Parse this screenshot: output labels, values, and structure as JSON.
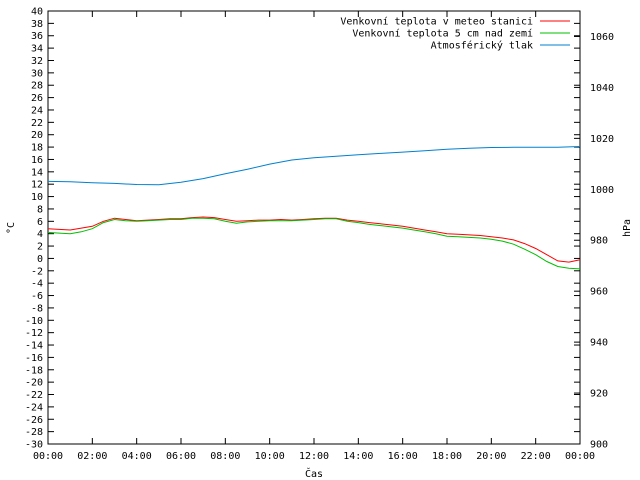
{
  "chart_data": {
    "type": "line",
    "title": "",
    "xlabel": "Čas",
    "ylabel": "°C",
    "y2label": "hPa",
    "x_ticks": [
      "00:00",
      "02:00",
      "04:00",
      "06:00",
      "08:00",
      "10:00",
      "12:00",
      "14:00",
      "16:00",
      "18:00",
      "20:00",
      "22:00",
      "00:00"
    ],
    "xlim": [
      0,
      24
    ],
    "ylim": [
      -30,
      40
    ],
    "y2lim": [
      900,
      1070
    ],
    "y_ticks": [
      40,
      38,
      36,
      34,
      32,
      30,
      28,
      26,
      24,
      22,
      20,
      18,
      16,
      14,
      12,
      10,
      8,
      6,
      4,
      2,
      0,
      -2,
      -4,
      -6,
      -8,
      -10,
      -12,
      -14,
      -16,
      -18,
      -20,
      -22,
      -24,
      -26,
      -28,
      -30
    ],
    "y2_ticks": [
      1060,
      1040,
      1020,
      1000,
      980,
      960,
      940,
      920,
      900
    ],
    "grid": false,
    "legend_position": "top-right",
    "series": [
      {
        "name": "Venkovní teplota v meteo stanici",
        "color": "#ff0000",
        "axis": "y",
        "x": [
          0,
          0.5,
          1,
          1.5,
          2,
          2.5,
          3,
          3.5,
          4,
          4.5,
          5,
          5.5,
          6,
          6.5,
          7,
          7.5,
          8,
          8.5,
          9,
          9.5,
          10,
          10.5,
          11,
          11.5,
          12,
          12.5,
          13,
          13.5,
          14,
          14.5,
          15,
          15.5,
          16,
          16.5,
          17,
          17.5,
          18,
          18.5,
          19,
          19.5,
          20,
          20.5,
          21,
          21.5,
          22,
          22.5,
          23,
          23.5,
          24
        ],
        "values": [
          4.8,
          4.7,
          4.6,
          4.9,
          5.2,
          6.0,
          6.5,
          6.3,
          6.1,
          6.2,
          6.3,
          6.4,
          6.4,
          6.6,
          6.7,
          6.6,
          6.3,
          6.0,
          6.1,
          6.2,
          6.2,
          6.3,
          6.2,
          6.3,
          6.4,
          6.5,
          6.5,
          6.2,
          6.0,
          5.8,
          5.6,
          5.4,
          5.2,
          4.9,
          4.6,
          4.3,
          4.0,
          3.9,
          3.8,
          3.7,
          3.5,
          3.3,
          3.0,
          2.4,
          1.6,
          0.6,
          -0.4,
          -0.6,
          -0.2
        ]
      },
      {
        "name": "Venkovní teplota 5 cm nad zemí",
        "color": "#00c000",
        "axis": "y",
        "x": [
          0,
          0.5,
          1,
          1.5,
          2,
          2.5,
          3,
          3.5,
          4,
          4.5,
          5,
          5.5,
          6,
          6.5,
          7,
          7.5,
          8,
          8.5,
          9,
          9.5,
          10,
          10.5,
          11,
          11.5,
          12,
          12.5,
          13,
          13.5,
          14,
          14.5,
          15,
          15.5,
          16,
          16.5,
          17,
          17.5,
          18,
          18.5,
          19,
          19.5,
          20,
          20.5,
          21,
          21.5,
          22,
          22.5,
          23,
          23.5,
          24
        ],
        "values": [
          4.2,
          4.1,
          4.0,
          4.3,
          4.8,
          5.8,
          6.3,
          6.1,
          6.0,
          6.1,
          6.2,
          6.3,
          6.3,
          6.5,
          6.5,
          6.4,
          6.0,
          5.7,
          5.9,
          6.0,
          6.1,
          6.1,
          6.1,
          6.2,
          6.3,
          6.4,
          6.4,
          6.0,
          5.8,
          5.5,
          5.3,
          5.1,
          4.9,
          4.6,
          4.3,
          4.0,
          3.6,
          3.5,
          3.4,
          3.3,
          3.1,
          2.8,
          2.3,
          1.5,
          0.6,
          -0.5,
          -1.3,
          -1.6,
          -1.7
        ]
      },
      {
        "name": "Atmosférický tlak",
        "color": "#0080d0",
        "axis": "y2",
        "x": [
          0,
          1,
          2,
          3,
          4,
          5,
          6,
          7,
          8,
          9,
          10,
          11,
          12,
          13,
          14,
          15,
          16,
          17,
          18,
          19,
          20,
          21,
          22,
          23,
          24
        ],
        "values": [
          1003.1,
          1003.0,
          1002.6,
          1002.3,
          1001.9,
          1001.8,
          1002.8,
          1004.2,
          1006.1,
          1007.9,
          1009.9,
          1011.5,
          1012.4,
          1013.0,
          1013.6,
          1014.1,
          1014.6,
          1015.1,
          1015.7,
          1016.1,
          1016.4,
          1016.5,
          1016.5,
          1016.5,
          1016.8
        ]
      }
    ]
  }
}
